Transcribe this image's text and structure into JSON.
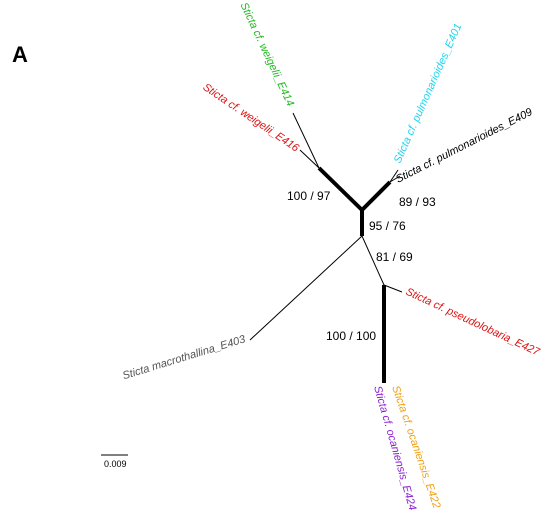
{
  "panel_label": "A",
  "tree": {
    "taxa": [
      {
        "id": "E414",
        "label": "Sticta cf. weigelii_E414",
        "color": "#22bb22"
      },
      {
        "id": "E416",
        "label": "Sticta cf. weigelii_E416",
        "color": "#dd1111"
      },
      {
        "id": "E401",
        "label": "Sticta cf. pulmonarioides_E401",
        "color": "#22d4ee"
      },
      {
        "id": "E409",
        "label": "Sticta  cf. pulmonarioides_E409",
        "color": "#000000"
      },
      {
        "id": "E427",
        "label": "Sticta cf. pseudolobaria_E427",
        "color": "#dd1111"
      },
      {
        "id": "E424",
        "label": "Sticta cf. ocaniensis_E424",
        "color": "#8a1fd0"
      },
      {
        "id": "E422",
        "label": "Sticta cf. ocaniensis_E422",
        "color": "#f0a010"
      },
      {
        "id": "E403",
        "label": "Sticta macrothallina_E403",
        "color": "#555555"
      }
    ],
    "support_values": {
      "weigelii_clade": "100 / 97",
      "pulmonarioides_clade": "89 / 93",
      "central_node": "95 / 76",
      "lower_node": "81 / 69",
      "ocaniensis_clade": "100 / 100"
    },
    "scale_bar": {
      "label": "0.009",
      "value": 0.009
    }
  }
}
